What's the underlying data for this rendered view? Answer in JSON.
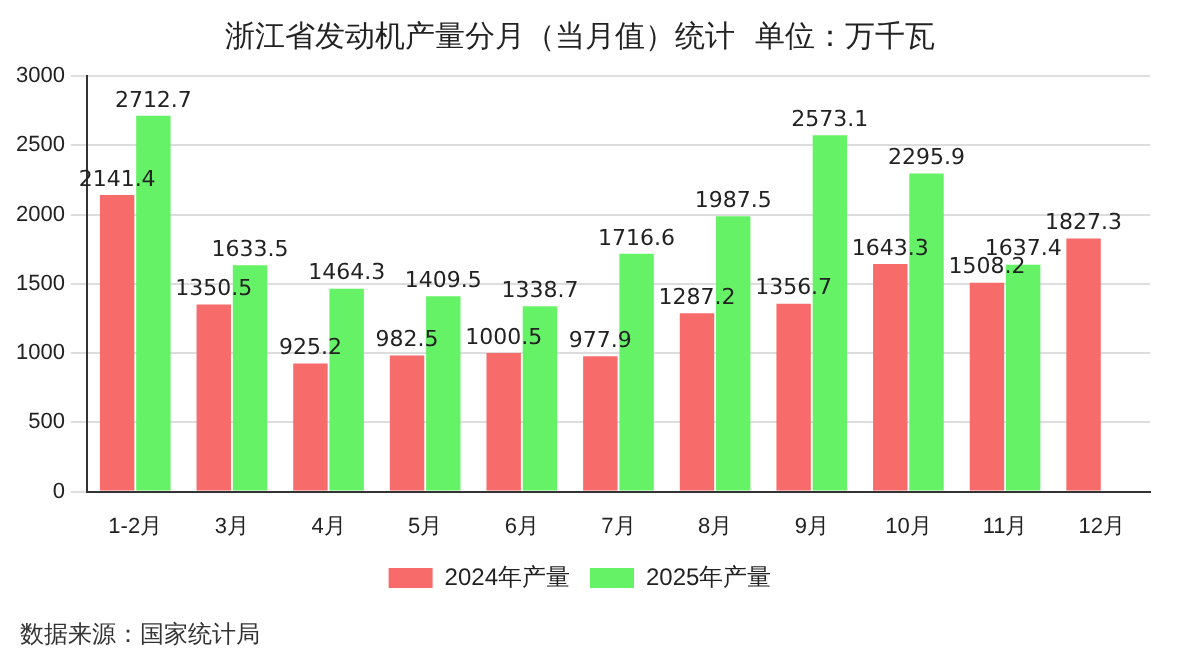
{
  "chart_data": {
    "type": "bar",
    "title": "浙江省发动机产量分月（当月值）统计  单位：万千瓦",
    "categories": [
      "1-2月",
      "3月",
      "4月",
      "5月",
      "6月",
      "7月",
      "8月",
      "9月",
      "10月",
      "11月",
      "12月"
    ],
    "series": [
      {
        "name": "2024年产量",
        "color": "#f86b6b",
        "values": [
          2141.4,
          1350.5,
          925.2,
          982.5,
          1000.5,
          977.9,
          1287.2,
          1356.7,
          1643.3,
          1508.2,
          1827.3
        ]
      },
      {
        "name": "2025年产量",
        "color": "#66f266",
        "values": [
          2712.7,
          1633.5,
          1464.3,
          1409.5,
          1338.7,
          1716.6,
          1987.5,
          2573.1,
          2295.9,
          1637.4,
          null
        ]
      }
    ],
    "ylim": [
      0,
      3000
    ],
    "yticks": [
      0,
      500,
      1000,
      1500,
      2000,
      2500,
      3000
    ],
    "grid": "y",
    "legend": "bottom",
    "data_labels": true,
    "annotations": [
      "数据来源：国家统计局"
    ]
  }
}
